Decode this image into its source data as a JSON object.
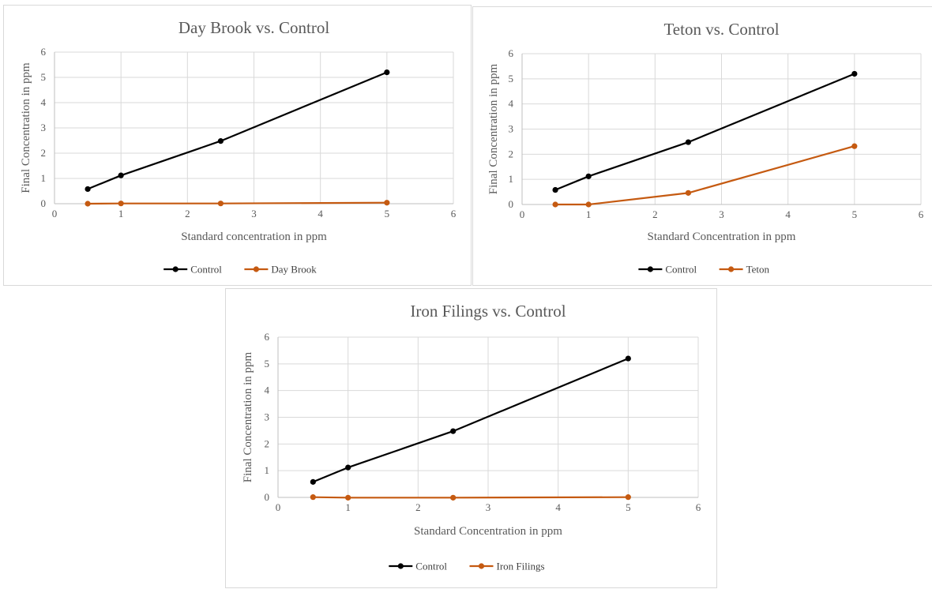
{
  "chart_data": [
    {
      "type": "line",
      "title": "Day Brook vs. Control",
      "xlabel": "Standard concentration in ppm",
      "ylabel": "Final Concentration in ppm",
      "xlim": [
        0,
        6
      ],
      "ylim": [
        0,
        6
      ],
      "xticks": [
        "0",
        "1",
        "2",
        "3",
        "4",
        "5",
        "6"
      ],
      "yticks": [
        "0",
        "1",
        "2",
        "3",
        "4",
        "5",
        "6"
      ],
      "grid": true,
      "legend_position": "bottom",
      "series": [
        {
          "name": "Control",
          "color": "#000000",
          "x": [
            0.5,
            1,
            2.5,
            5
          ],
          "y": [
            0.58,
            1.12,
            2.48,
            5.2
          ]
        },
        {
          "name": "Day Brook",
          "color": "#c55a11",
          "x": [
            0.5,
            1,
            2.5,
            5
          ],
          "y": [
            0.0,
            0.01,
            0.01,
            0.04
          ]
        }
      ]
    },
    {
      "type": "line",
      "title": "Teton vs. Control",
      "xlabel": "Standard Concentration in ppm",
      "ylabel": "Final Concentration in ppm",
      "xlim": [
        0,
        6
      ],
      "ylim": [
        0,
        6
      ],
      "xticks": [
        "0",
        "1",
        "2",
        "3",
        "4",
        "5",
        "6"
      ],
      "yticks": [
        "0",
        "1",
        "2",
        "3",
        "4",
        "5",
        "6"
      ],
      "grid": true,
      "legend_position": "bottom",
      "series": [
        {
          "name": "Control",
          "color": "#000000",
          "x": [
            0.5,
            1,
            2.5,
            5
          ],
          "y": [
            0.58,
            1.12,
            2.48,
            5.2
          ]
        },
        {
          "name": "Teton",
          "color": "#c55a11",
          "x": [
            0.5,
            1,
            2.5,
            5
          ],
          "y": [
            0.0,
            0.0,
            0.46,
            2.32
          ]
        }
      ]
    },
    {
      "type": "line",
      "title": "Iron Filings vs. Control",
      "xlabel": "Standard Concentration in ppm",
      "ylabel": "Final Concentration in ppm",
      "xlim": [
        0,
        6
      ],
      "ylim": [
        0,
        6
      ],
      "xticks": [
        "0",
        "1",
        "2",
        "3",
        "4",
        "5",
        "6"
      ],
      "yticks": [
        "0",
        "1",
        "2",
        "3",
        "4",
        "5",
        "6"
      ],
      "grid": true,
      "legend_position": "bottom",
      "series": [
        {
          "name": "Control",
          "color": "#000000",
          "x": [
            0.5,
            1,
            2.5,
            5
          ],
          "y": [
            0.58,
            1.12,
            2.48,
            5.2
          ]
        },
        {
          "name": "Iron Filings",
          "color": "#c55a11",
          "x": [
            0.5,
            1,
            2.5,
            5
          ],
          "y": [
            0.01,
            -0.01,
            -0.01,
            0.01
          ]
        }
      ]
    }
  ]
}
